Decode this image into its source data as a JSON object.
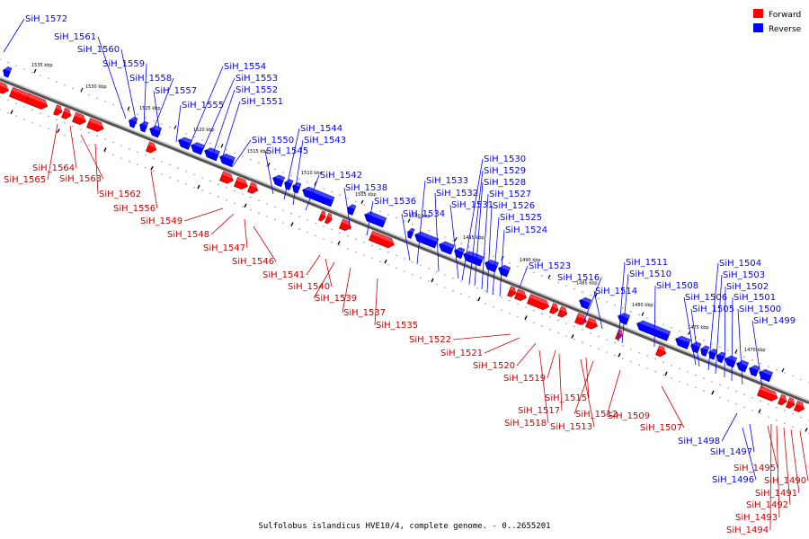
{
  "caption": "Sulfolobus islandicus HVE10/4, complete genome. - 0..2655201",
  "legend": [
    {
      "label": "Forward",
      "color": "#ff0000"
    },
    {
      "label": "Reverse",
      "color": "#0000ff"
    }
  ],
  "colors": {
    "forward": "#ff0000",
    "reverse": "#0000ff",
    "backbone": "#808080"
  },
  "ticks": [
    "1535 kbp",
    "1530 kbp",
    "1525 kbp",
    "1520 kbp",
    "1515 kbp",
    "1510 kbp",
    "1505 kbp",
    "1500 kbp",
    "1495 kbp",
    "1490 kbp",
    "1485 kbp",
    "1480 kbp",
    "1475 kbp",
    "1470 kbp"
  ],
  "reverse_labels": [
    "SiH_1572",
    "SiH_1561",
    "SiH_1560",
    "SiH_1559",
    "SiH_1558",
    "SiH_1557",
    "SiH_1555",
    "SiH_1554",
    "SiH_1553",
    "SiH_1552",
    "SiH_1551",
    "SiH_1550",
    "SiH_1545",
    "SiH_1544",
    "SiH_1543",
    "SiH_1542",
    "SiH_1538",
    "SiH_1536",
    "SiH_1534",
    "SiH_1533",
    "SiH_1532",
    "SiH_1531",
    "SiH_1530",
    "SiH_1529",
    "SiH_1528",
    "SiH_1527",
    "SiH_1526",
    "SiH_1525",
    "SiH_1524",
    "SiH_1523",
    "SiH_1516",
    "SiH_1514",
    "SiH_1511",
    "SiH_1510",
    "SiH_1508",
    "SiH_1506",
    "SiH_1505",
    "SiH_1504",
    "SiH_1503",
    "SiH_1502",
    "SiH_1501",
    "SiH_1500",
    "SiH_1499",
    "SiH_1498",
    "SiH_1497",
    "SiH_1496"
  ],
  "forward_labels": [
    "SiH_1564",
    "SiH_1565",
    "SiH_1563",
    "SiH_1562",
    "SiH_1556",
    "SiH_1549",
    "SiH_1548",
    "SiH_1547",
    "SiH_1546",
    "SiH_1541",
    "SiH_1540",
    "SiH_1539",
    "SiH_1537",
    "SiH_1535",
    "SiH_1522",
    "SiH_1521",
    "SiH_1520",
    "SiH_1519",
    "SiH_1517",
    "SiH_1518",
    "SiH_1515",
    "SiH_1512",
    "SiH_1513",
    "SiH_1509",
    "SiH_1507",
    "SiH_1495",
    "SiH_1490",
    "SiH_1491",
    "SiH_1492",
    "SiH_1493",
    "SiH_1494"
  ]
}
